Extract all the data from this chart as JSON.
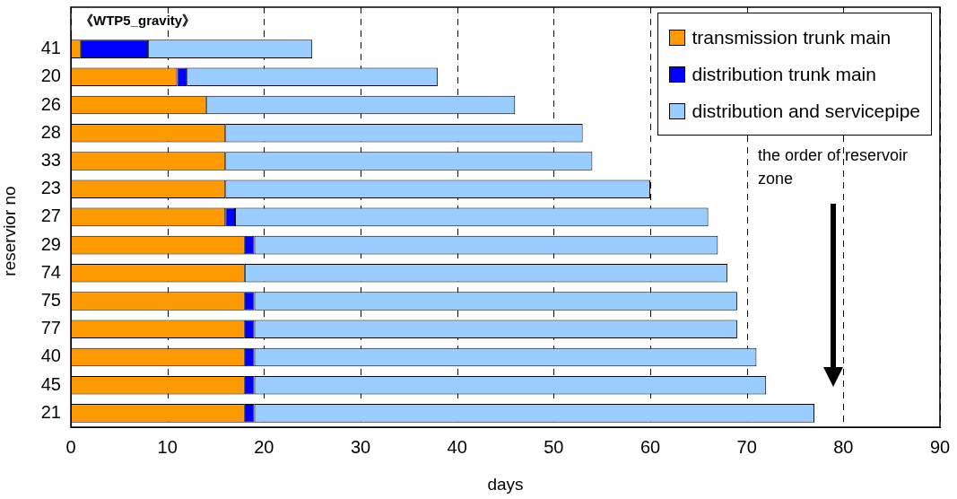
{
  "chart_data": {
    "type": "bar",
    "orientation": "horizontal",
    "stacked": true,
    "title": "《WTP5_gravity》",
    "xlabel": "days",
    "ylabel": "reservior no",
    "categories": [
      "41",
      "20",
      "26",
      "28",
      "33",
      "23",
      "27",
      "29",
      "74",
      "75",
      "77",
      "40",
      "45",
      "21"
    ],
    "series": [
      {
        "name": "transmission trunk main",
        "color": "#ff9900",
        "values": [
          1,
          11,
          14,
          16,
          16,
          16,
          16,
          18,
          18,
          18,
          18,
          18,
          18,
          18
        ]
      },
      {
        "name": "distribution trunk main",
        "color": "#0000ff",
        "values": [
          7,
          1,
          0,
          0,
          0,
          0,
          1,
          1,
          0,
          1,
          1,
          1,
          1,
          1
        ]
      },
      {
        "name": "distribution and servicepipe",
        "color": "#99ccff",
        "values": [
          17,
          26,
          32,
          37,
          38,
          44,
          49,
          48,
          50,
          50,
          50,
          52,
          53,
          58
        ]
      }
    ],
    "xlim": [
      0,
      90
    ],
    "xticks": [
      0,
      10,
      20,
      30,
      40,
      50,
      60,
      70,
      80,
      90
    ],
    "grid": "x",
    "legend": "top right",
    "annotations": [
      "the order of reservoir zone"
    ]
  }
}
